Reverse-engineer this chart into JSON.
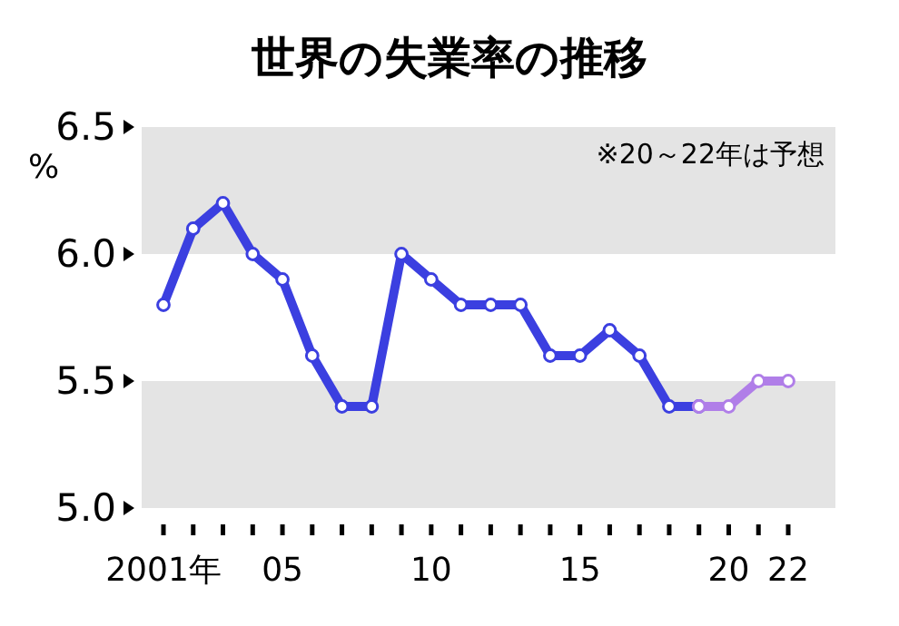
{
  "chart_data": {
    "type": "line",
    "title": "世界の失業率の推移",
    "ylabel": "%",
    "annotations": [
      "※20～22年は予想"
    ],
    "x": [
      2001,
      2002,
      2003,
      2004,
      2005,
      2006,
      2007,
      2008,
      2009,
      2010,
      2011,
      2012,
      2013,
      2014,
      2015,
      2016,
      2017,
      2018,
      2019,
      2020,
      2021,
      2022
    ],
    "series": [
      {
        "color": "#3b3fe0",
        "values": [
          5.8,
          6.1,
          6.2,
          6.0,
          5.9,
          5.6,
          5.4,
          5.4,
          6.0,
          5.9,
          5.8,
          5.8,
          5.8,
          5.6,
          5.6,
          5.7,
          5.6,
          5.4,
          5.4,
          null,
          null,
          null
        ]
      },
      {
        "color": "#b07ee8",
        "values": [
          null,
          null,
          null,
          null,
          null,
          null,
          null,
          null,
          null,
          null,
          null,
          null,
          null,
          null,
          null,
          null,
          null,
          null,
          5.4,
          5.4,
          5.5,
          5.5
        ]
      }
    ],
    "xlim": [
      2001,
      2022
    ],
    "xticks": [
      {
        "value": 2001,
        "label": "2001年"
      },
      {
        "value": 2002,
        "label": null
      },
      {
        "value": 2003,
        "label": null
      },
      {
        "value": 2004,
        "label": null
      },
      {
        "value": 2005,
        "label": "05"
      },
      {
        "value": 2006,
        "label": null
      },
      {
        "value": 2007,
        "label": null
      },
      {
        "value": 2008,
        "label": null
      },
      {
        "value": 2009,
        "label": null
      },
      {
        "value": 2010,
        "label": "10"
      },
      {
        "value": 2011,
        "label": null
      },
      {
        "value": 2012,
        "label": null
      },
      {
        "value": 2013,
        "label": null
      },
      {
        "value": 2014,
        "label": null
      },
      {
        "value": 2015,
        "label": "15"
      },
      {
        "value": 2016,
        "label": null
      },
      {
        "value": 2017,
        "label": null
      },
      {
        "value": 2018,
        "label": null
      },
      {
        "value": 2019,
        "label": null
      },
      {
        "value": 2020,
        "label": "20"
      },
      {
        "value": 2021,
        "label": null
      },
      {
        "value": 2022,
        "label": "22"
      }
    ],
    "ylim": [
      5.0,
      6.5
    ],
    "yticks": [
      {
        "value": 5.0,
        "label": "5.0"
      },
      {
        "value": 5.5,
        "label": "5.5"
      },
      {
        "value": 6.0,
        "label": "6.0"
      },
      {
        "value": 6.5,
        "label": "6.5"
      }
    ],
    "bands": [
      {
        "axis": "y",
        "from": 5.0,
        "to": 5.5,
        "color": "#e4e4e4"
      },
      {
        "axis": "y",
        "from": 6.0,
        "to": 6.5,
        "color": "#e4e4e4"
      }
    ],
    "marker": "circle",
    "line_style": "solid",
    "grid": false
  }
}
